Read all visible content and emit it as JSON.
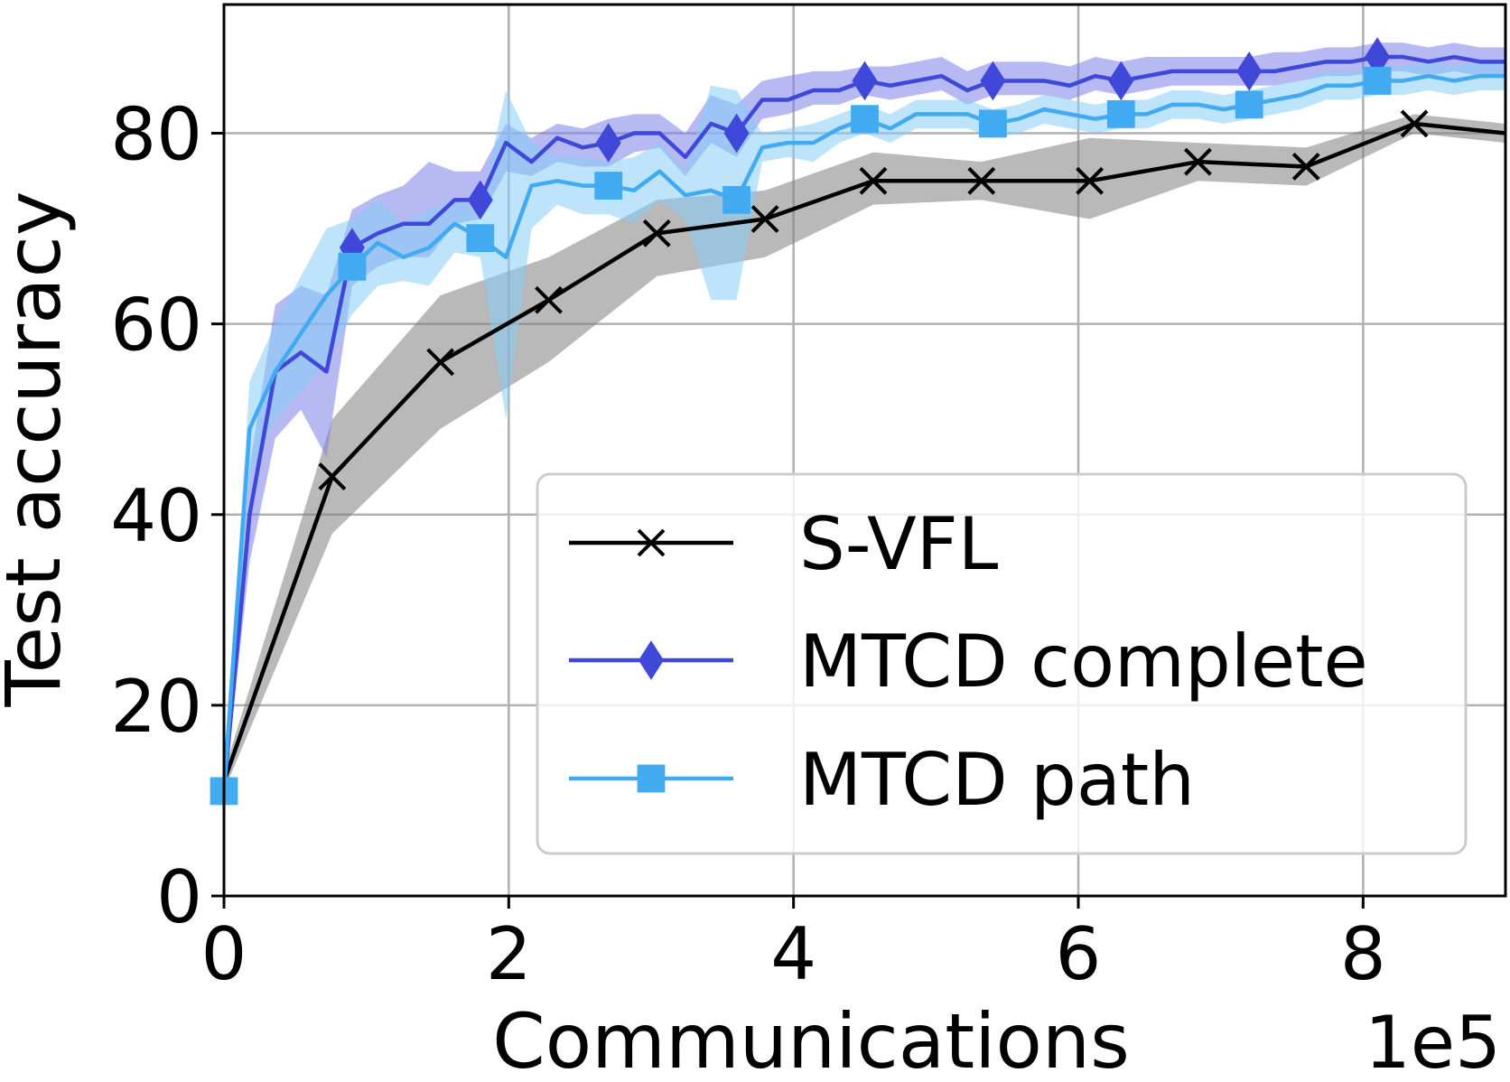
{
  "chart_data": {
    "type": "line",
    "xlabel": "Communications",
    "ylabel": "Test accuracy",
    "x_multiplier_label": "1e5",
    "xlim": [
      0,
      9.0
    ],
    "ylim": [
      0,
      93.5
    ],
    "xticks": [
      0,
      2,
      4,
      6,
      8
    ],
    "xtick_labels": [
      "0",
      "2",
      "4",
      "6",
      "8"
    ],
    "yticks": [
      0,
      20,
      40,
      60,
      80
    ],
    "ytick_labels": [
      "0",
      "20",
      "40",
      "60",
      "80"
    ],
    "grid": true,
    "legend_position": "lower-right",
    "series": [
      {
        "name": "S-VFL",
        "color": "#000000",
        "band_color": "#808080",
        "marker": "x",
        "x": [
          0,
          0.76,
          1.52,
          2.28,
          3.04,
          3.8,
          4.56,
          5.32,
          6.08,
          6.84,
          7.6,
          8.36,
          9.0
        ],
        "values": [
          12,
          44,
          56,
          62.5,
          69.5,
          71,
          75,
          75,
          75,
          77,
          76.5,
          81,
          80
        ],
        "lower": [
          11,
          38,
          49,
          56,
          65,
          67,
          72.5,
          73,
          71,
          75,
          74.5,
          80,
          79
        ],
        "upper": [
          13,
          50,
          63,
          67,
          73,
          74,
          78,
          77,
          79.5,
          79,
          78.5,
          82,
          81
        ],
        "marker_x": [
          0.76,
          1.52,
          2.28,
          3.04,
          3.8,
          4.56,
          5.32,
          6.08,
          6.84,
          7.6,
          8.36
        ]
      },
      {
        "name": "MTCD complete",
        "color": "#3f48d8",
        "band_color": "#7a80e8",
        "marker": "diamond",
        "x": [
          0,
          0.18,
          0.36,
          0.54,
          0.72,
          0.9,
          1.08,
          1.26,
          1.44,
          1.62,
          1.8,
          1.98,
          2.16,
          2.34,
          2.52,
          2.7,
          2.88,
          3.06,
          3.24,
          3.42,
          3.6,
          3.78,
          3.96,
          4.14,
          4.32,
          4.5,
          4.68,
          4.86,
          5.04,
          5.22,
          5.4,
          5.58,
          5.76,
          5.94,
          6.12,
          6.3,
          6.48,
          6.66,
          6.84,
          7.02,
          7.2,
          7.38,
          7.56,
          7.74,
          7.92,
          8.1,
          8.28,
          8.46,
          8.64,
          8.82,
          9.0
        ],
        "values": [
          11,
          40,
          55,
          57,
          55,
          68,
          69.5,
          70.5,
          70.5,
          73,
          73,
          79,
          77,
          79.5,
          78.5,
          79,
          80,
          80,
          77.5,
          81,
          80,
          83.5,
          83.5,
          84.5,
          84.5,
          85.5,
          85,
          85.5,
          86,
          84.5,
          85.5,
          85.5,
          85.5,
          85,
          86,
          85.5,
          86,
          86.5,
          86.5,
          86.5,
          86.5,
          86.5,
          87,
          87.5,
          87.5,
          88,
          88,
          87.5,
          88,
          87.5,
          87.5
        ],
        "lower": [
          10.5,
          35,
          48,
          51,
          46,
          64,
          66,
          67,
          67,
          70.5,
          71,
          76,
          75.5,
          77,
          76.5,
          76.5,
          78,
          78.5,
          75.5,
          79,
          77.5,
          81.5,
          82,
          83,
          83,
          84,
          83.5,
          84,
          84.5,
          83,
          84,
          84,
          84,
          83.5,
          84.5,
          84,
          84.5,
          85,
          85,
          85,
          85,
          85,
          85.5,
          86,
          86,
          86.5,
          86.5,
          86,
          86.5,
          86,
          86
        ],
        "upper": [
          11.5,
          45,
          62,
          64,
          63,
          72,
          73.5,
          74.5,
          77,
          76,
          76,
          81,
          79.5,
          81,
          80.5,
          81.5,
          82,
          82,
          80,
          84,
          83,
          85.5,
          86,
          86.5,
          86.5,
          87,
          87,
          87.5,
          88,
          86.5,
          87.5,
          87.5,
          87.5,
          87,
          88,
          87.5,
          88,
          88,
          88,
          88,
          88,
          88.5,
          88.5,
          89,
          89,
          89.5,
          89.5,
          89,
          89.5,
          89,
          89
        ],
        "marker_x": [
          0.9,
          1.8,
          2.7,
          3.6,
          4.5,
          5.4,
          6.3,
          7.2,
          8.1
        ]
      },
      {
        "name": "MTCD path",
        "color": "#42aaf0",
        "band_color": "#87cef5",
        "marker": "square",
        "x": [
          0,
          0.18,
          0.36,
          0.54,
          0.72,
          0.9,
          1.08,
          1.26,
          1.44,
          1.62,
          1.8,
          1.98,
          2.16,
          2.34,
          2.52,
          2.7,
          2.88,
          3.06,
          3.24,
          3.42,
          3.6,
          3.78,
          3.96,
          4.14,
          4.32,
          4.5,
          4.68,
          4.86,
          5.04,
          5.22,
          5.4,
          5.58,
          5.76,
          5.94,
          6.12,
          6.3,
          6.48,
          6.66,
          6.84,
          7.02,
          7.2,
          7.38,
          7.56,
          7.74,
          7.92,
          8.1,
          8.28,
          8.46,
          8.64,
          8.82,
          9.0
        ],
        "values": [
          11,
          49,
          55,
          59,
          63,
          66,
          68.5,
          67,
          68,
          70.5,
          69,
          67,
          74.5,
          75,
          74.5,
          74.5,
          74,
          76,
          73.5,
          74,
          73,
          78.5,
          79,
          79,
          80.5,
          81.5,
          80.5,
          82,
          82,
          82,
          81,
          81.5,
          82.5,
          82,
          81.5,
          82,
          82,
          83,
          83,
          82.5,
          83,
          83.5,
          84,
          85,
          85,
          85.5,
          85.5,
          86,
          85.5,
          86,
          86
        ],
        "lower": [
          10,
          44,
          50,
          53,
          56,
          61,
          64,
          64.5,
          64,
          67.5,
          67,
          50,
          70,
          72.5,
          71.5,
          71.5,
          70.5,
          73,
          71,
          62.5,
          62.5,
          77,
          77.5,
          77,
          79,
          80,
          79,
          80.5,
          80.5,
          80.5,
          79.5,
          80,
          81,
          80.5,
          80,
          80.5,
          80.5,
          81.5,
          81.5,
          81,
          81.5,
          82,
          82.5,
          83.5,
          83.5,
          84,
          84,
          84.5,
          84,
          84.5,
          84.5
        ],
        "upper": [
          12,
          54,
          60,
          65,
          70,
          71,
          73,
          70.5,
          72,
          73,
          72,
          84.5,
          79,
          77.5,
          77.5,
          77,
          77.5,
          79,
          76,
          85,
          84.5,
          80,
          80.5,
          81,
          82,
          83,
          82,
          83.5,
          83.5,
          83.5,
          82.5,
          83,
          84,
          83.5,
          83,
          83.5,
          83.5,
          84.5,
          84.5,
          84,
          84.5,
          85,
          85.5,
          86.5,
          86.5,
          87,
          87,
          87.5,
          87,
          87.5,
          87.5
        ],
        "marker_x": [
          0,
          0.9,
          1.8,
          2.7,
          3.6,
          4.5,
          5.4,
          6.3,
          7.2,
          8.1
        ]
      }
    ]
  }
}
